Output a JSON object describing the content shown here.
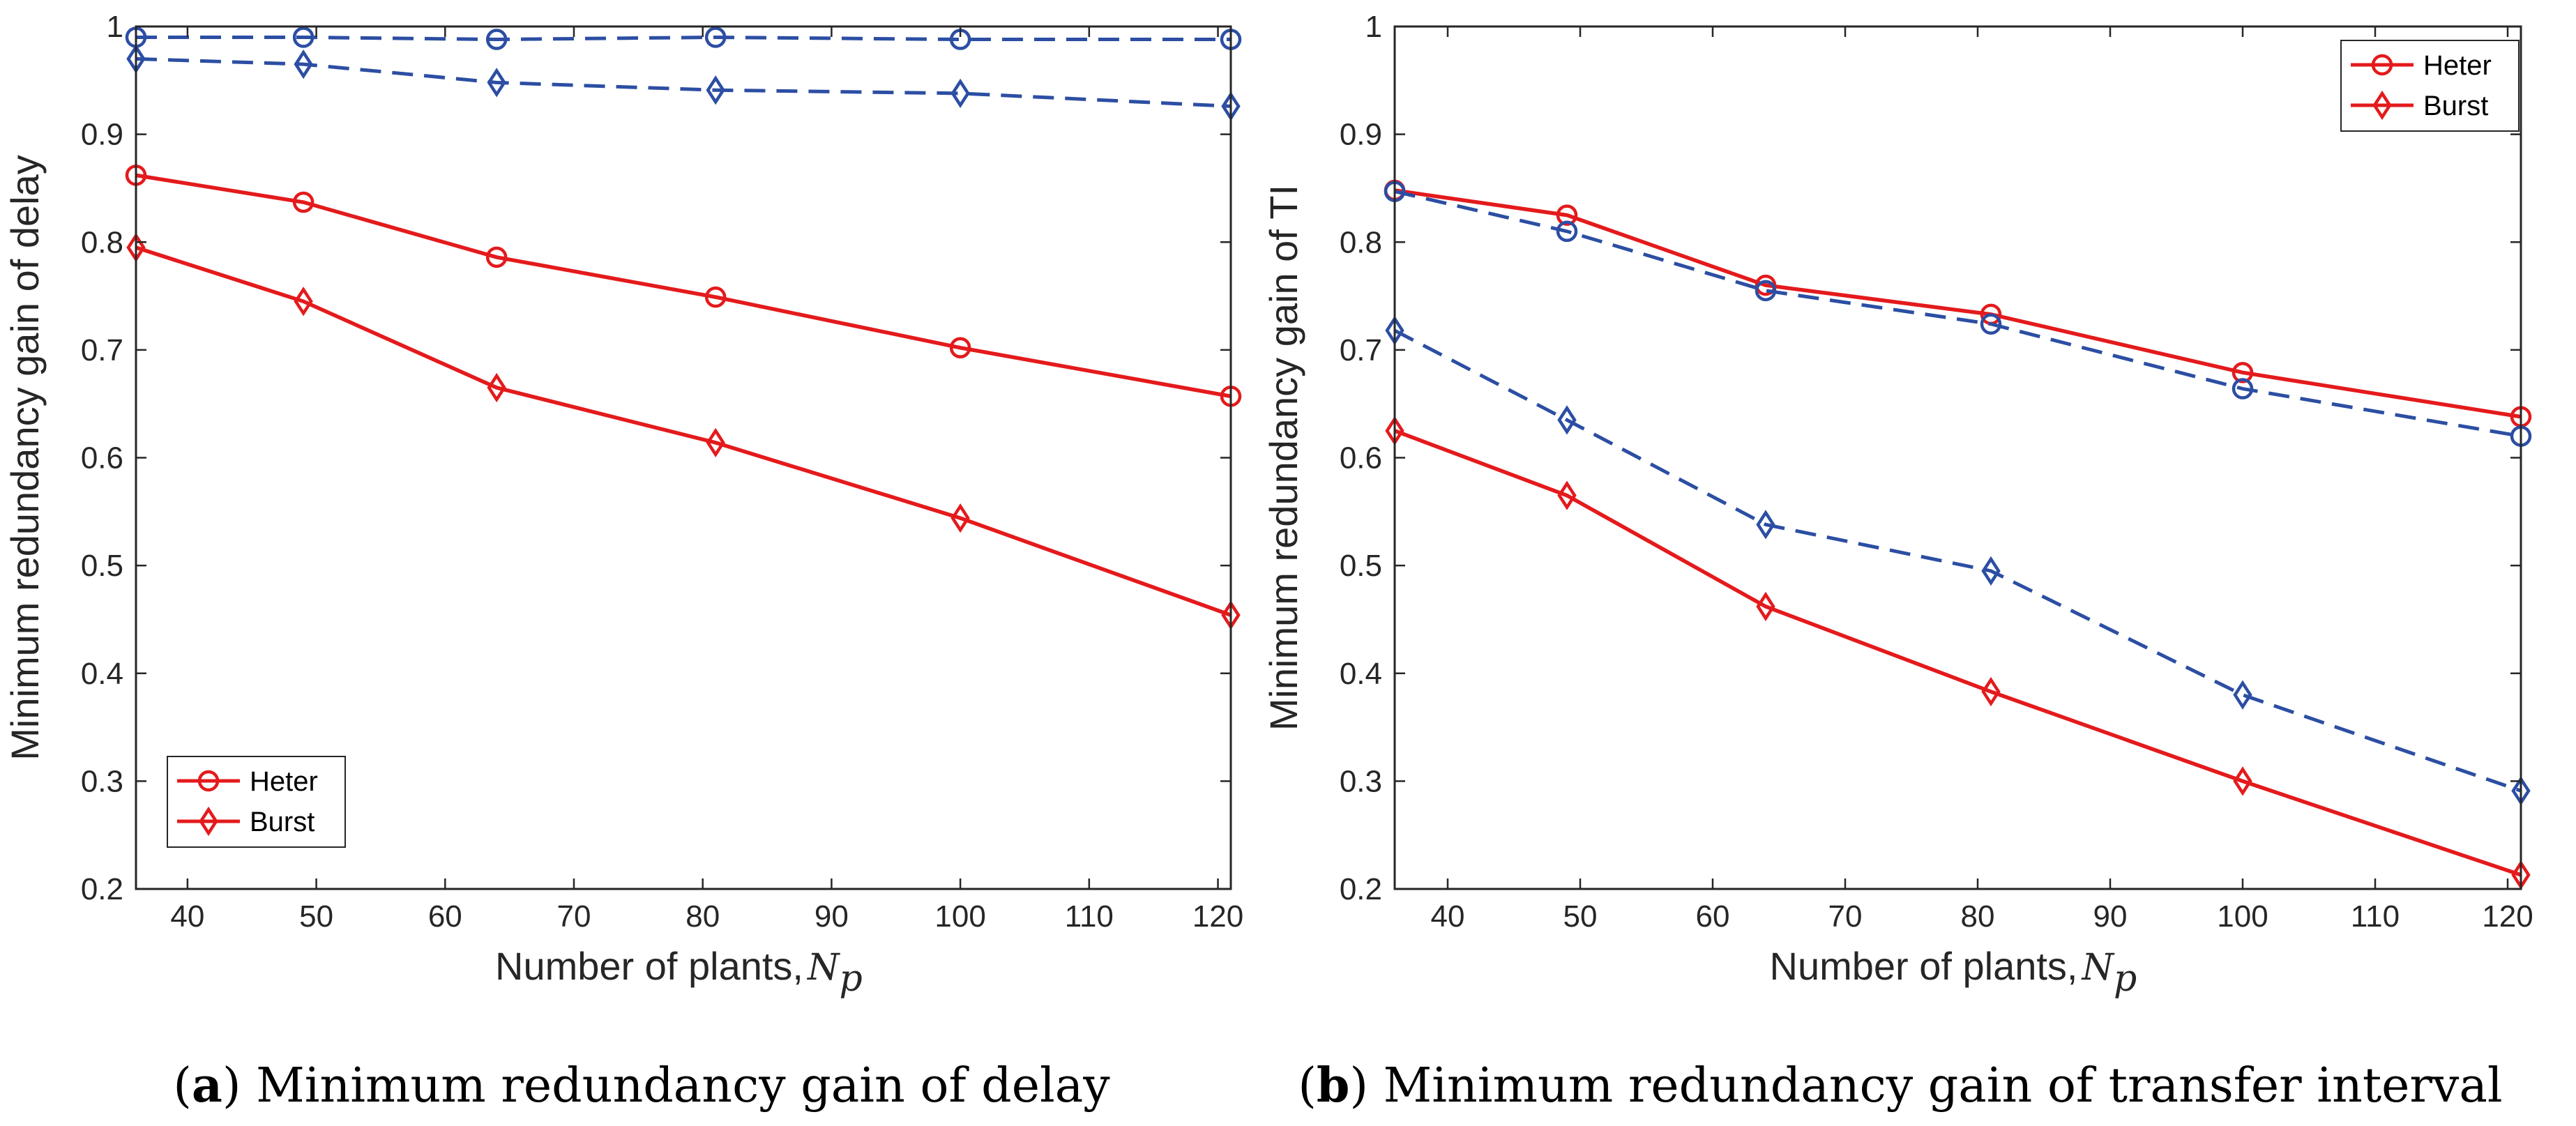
{
  "chart_data": [
    {
      "type": "line",
      "caption": {
        "prefix": "(",
        "letter": "a",
        "suffix": ") Minimum redundancy gain of delay"
      },
      "xlabel": "Number of plants,",
      "xlabel_symbol": {
        "main": "N",
        "sub": "p"
      },
      "ylabel": "Minimum redundancy gain of delay",
      "xlim": [
        36,
        121
      ],
      "ylim": [
        0.2,
        1
      ],
      "x_ticks": [
        40,
        50,
        60,
        70,
        80,
        90,
        100,
        110,
        120
      ],
      "y_ticks": [
        0.2,
        0.3,
        0.4,
        0.5,
        0.6,
        0.7,
        0.8,
        0.9,
        1
      ],
      "y_tick_labels": [
        "0.2",
        "0.3",
        "0.4",
        "0.5",
        "0.6",
        "0.7",
        "0.8",
        "0.9",
        "1"
      ],
      "legend": {
        "position": "bottom-left"
      },
      "x": [
        36,
        49,
        64,
        81,
        100,
        121
      ],
      "series": [
        {
          "name": "Heter",
          "color": "#e41a1c",
          "style": "solid",
          "marker": "circle",
          "in_legend": true,
          "values": [
            0.862,
            0.837,
            0.786,
            0.749,
            0.702,
            0.657
          ]
        },
        {
          "name": "Burst",
          "color": "#e41a1c",
          "style": "solid",
          "marker": "diamond",
          "in_legend": true,
          "values": [
            0.795,
            0.745,
            0.665,
            0.614,
            0.544,
            0.454
          ]
        },
        {
          "color": "#2c4ea3",
          "style": "dashed",
          "marker": "circle",
          "in_legend": false,
          "values": [
            0.99,
            0.99,
            0.988,
            0.99,
            0.988,
            0.988
          ]
        },
        {
          "color": "#2c4ea3",
          "style": "dashed",
          "marker": "diamond",
          "in_legend": false,
          "values": [
            0.97,
            0.965,
            0.948,
            0.941,
            0.938,
            0.926
          ]
        }
      ]
    },
    {
      "type": "line",
      "caption": {
        "prefix": "(",
        "letter": "b",
        "suffix": ") Minimum redundancy gain of transfer interval"
      },
      "xlabel": "Number of plants,",
      "xlabel_symbol": {
        "main": "N",
        "sub": "p"
      },
      "ylabel": "Minimum redundancy gain of TI",
      "xlim": [
        36,
        121
      ],
      "ylim": [
        0.2,
        1
      ],
      "x_ticks": [
        40,
        50,
        60,
        70,
        80,
        90,
        100,
        110,
        120
      ],
      "y_ticks": [
        0.2,
        0.3,
        0.4,
        0.5,
        0.6,
        0.7,
        0.8,
        0.9,
        1
      ],
      "y_tick_labels": [
        "0.2",
        "0.3",
        "0.4",
        "0.5",
        "0.6",
        "0.7",
        "0.8",
        "0.9",
        "1"
      ],
      "legend": {
        "position": "top-right"
      },
      "x": [
        36,
        49,
        64,
        81,
        100,
        121
      ],
      "series": [
        {
          "name": "Heter",
          "color": "#e41a1c",
          "style": "solid",
          "marker": "circle",
          "in_legend": true,
          "values": [
            0.848,
            0.825,
            0.76,
            0.733,
            0.679,
            0.638
          ]
        },
        {
          "name": "Burst",
          "color": "#e41a1c",
          "style": "solid",
          "marker": "diamond",
          "in_legend": true,
          "values": [
            0.625,
            0.565,
            0.462,
            0.383,
            0.3,
            0.213
          ]
        },
        {
          "color": "#2c4ea3",
          "style": "dashed",
          "marker": "circle",
          "in_legend": false,
          "values": [
            0.847,
            0.81,
            0.755,
            0.724,
            0.664,
            0.62
          ]
        },
        {
          "color": "#2c4ea3",
          "style": "dashed",
          "marker": "diamond",
          "in_legend": false,
          "values": [
            0.718,
            0.635,
            0.538,
            0.495,
            0.38,
            0.291
          ]
        }
      ]
    }
  ]
}
